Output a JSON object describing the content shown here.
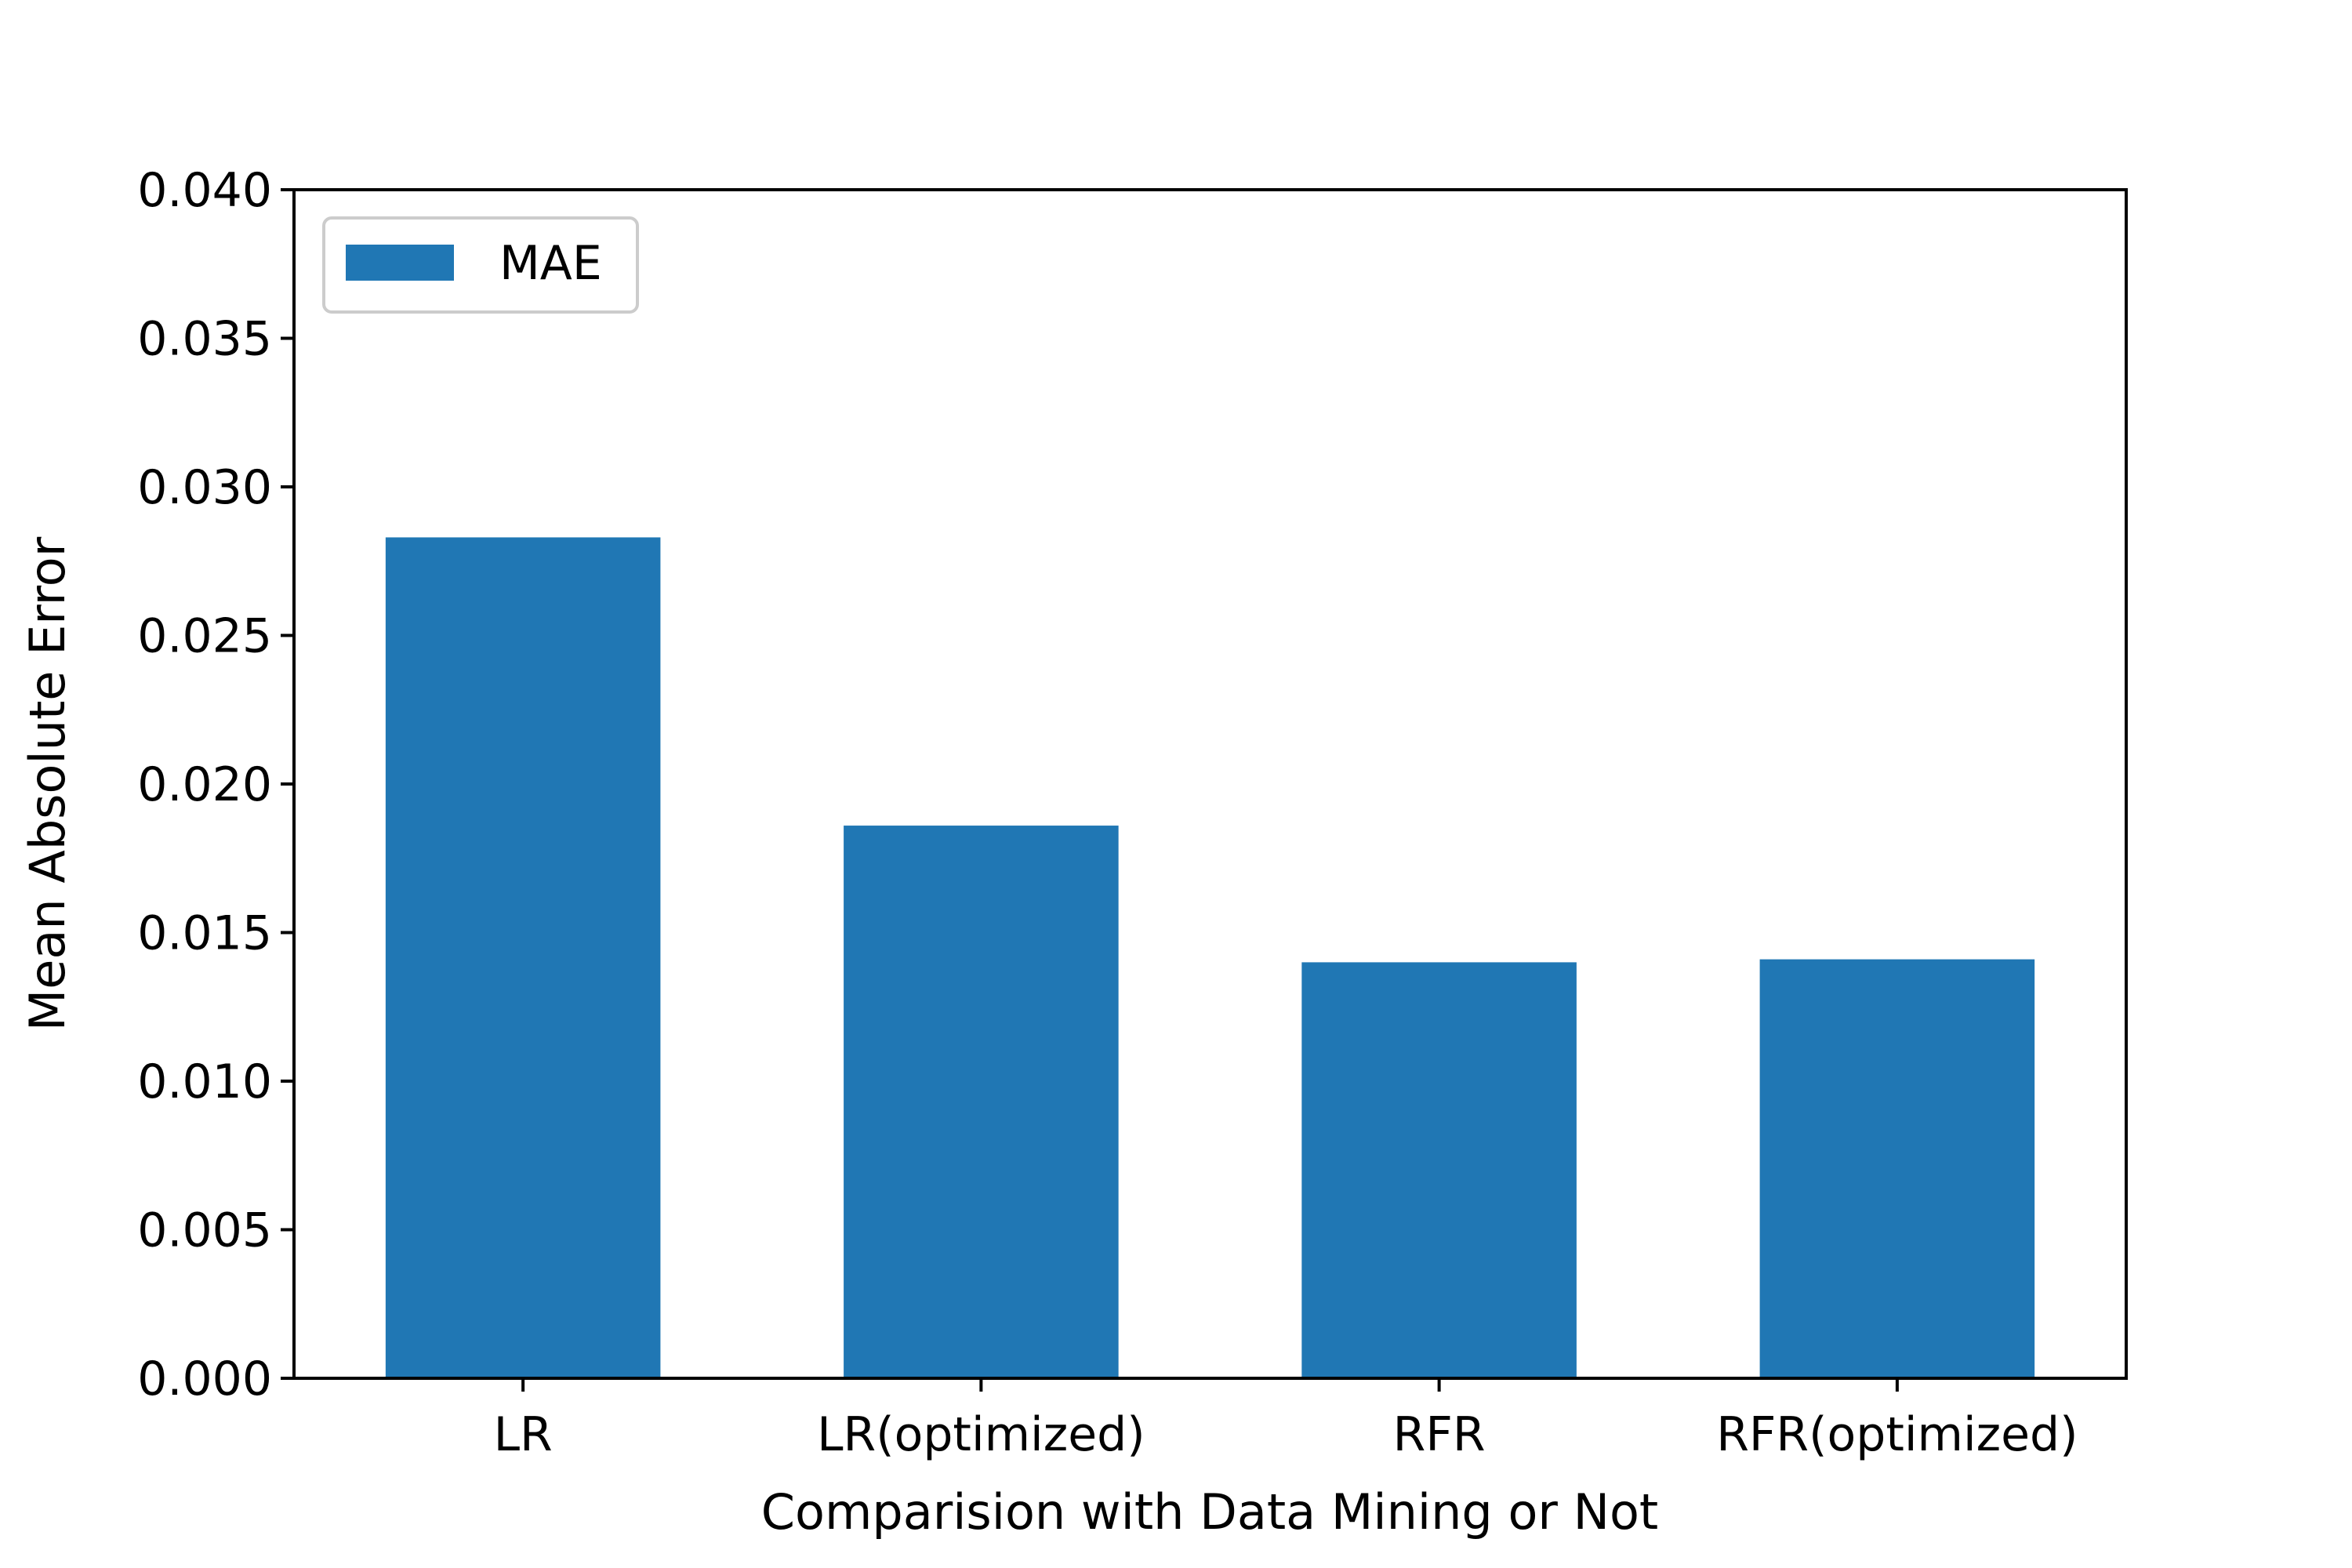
{
  "chart_data": {
    "type": "bar",
    "categories": [
      "LR",
      "LR(optimized)",
      "RFR",
      "RFR(optimized)"
    ],
    "series": [
      {
        "name": "MAE",
        "values": [
          0.0283,
          0.0186,
          0.014,
          0.0141
        ],
        "color": "#2077b4"
      }
    ],
    "xlabel": "Comparision with Data Mining or Not",
    "ylabel": "Mean Absolute Error",
    "ylim": [
      0,
      0.04
    ],
    "yticks": [
      "0.000",
      "0.005",
      "0.010",
      "0.015",
      "0.020",
      "0.025",
      "0.030",
      "0.035",
      "0.040"
    ],
    "grid": false,
    "legend_position": "top-left"
  }
}
